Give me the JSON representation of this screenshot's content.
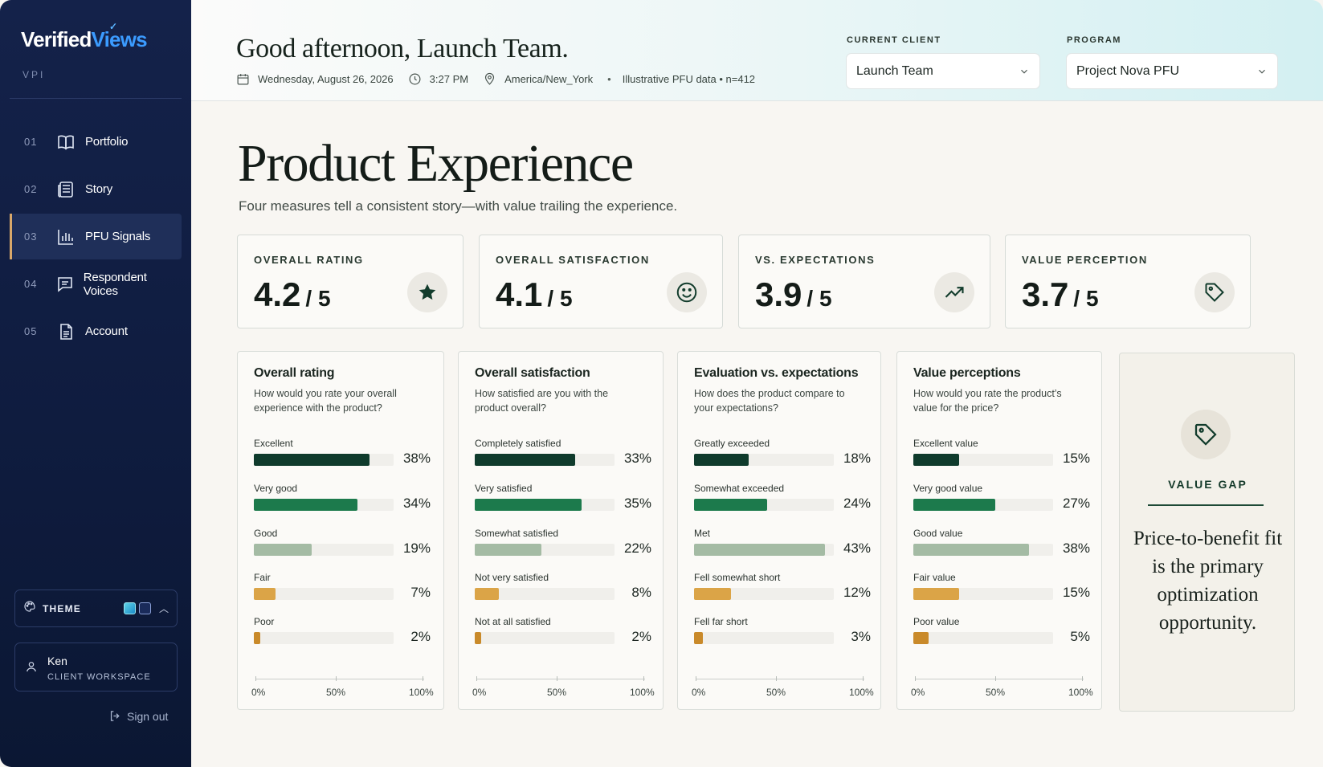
{
  "brand": {
    "name_part1": "Verified",
    "name_part2": "Views",
    "sub": "VPI"
  },
  "nav": [
    {
      "num": "01",
      "label": "Portfolio",
      "icon": "book-icon"
    },
    {
      "num": "02",
      "label": "Story",
      "icon": "newspaper-icon"
    },
    {
      "num": "03",
      "label": "PFU Signals",
      "icon": "bar-chart-icon",
      "active": true
    },
    {
      "num": "04",
      "label": "Respondent Voices",
      "icon": "message-icon"
    },
    {
      "num": "05",
      "label": "Account",
      "icon": "document-icon"
    }
  ],
  "theme": {
    "label": "THEME"
  },
  "user": {
    "name": "Ken",
    "role": "CLIENT WORKSPACE"
  },
  "signout": "Sign out",
  "header": {
    "greeting": "Good afternoon, Launch Team.",
    "date": "Wednesday, August 26, 2026",
    "time": "3:27 PM",
    "timezone": "America/New_York",
    "data_note": "Illustrative PFU data • n=412",
    "client_label": "CURRENT CLIENT",
    "client_value": "Launch Team",
    "program_label": "PROGRAM",
    "program_value": "Project Nova PFU"
  },
  "page": {
    "title": "Product Experience",
    "subtitle": "Four measures tell a consistent story—with value trailing the experience."
  },
  "kpis": [
    {
      "label": "OVERALL RATING",
      "value": "4.2",
      "of": "/ 5",
      "icon": "star-icon"
    },
    {
      "label": "OVERALL SATISFACTION",
      "value": "4.1",
      "of": "/ 5",
      "icon": "smile-icon"
    },
    {
      "label": "VS. EXPECTATIONS",
      "value": "3.9",
      "of": "/ 5",
      "icon": "trending-up-icon"
    },
    {
      "label": "VALUE PERCEPTION",
      "value": "3.7",
      "of": "/ 5",
      "icon": "tag-icon"
    }
  ],
  "colors": [
    "#0f3b2c",
    "#1c7a4c",
    "#a4bba4",
    "#dba447",
    "#c98a2a"
  ],
  "axis_labels": [
    "0%",
    "50%",
    "100%"
  ],
  "cards": [
    {
      "title": "Overall rating",
      "question": "How would you rate your overall experience with the product?",
      "rows": [
        {
          "label": "Excellent",
          "pct": 38,
          "pct_text": "38%"
        },
        {
          "label": "Very good",
          "pct": 34,
          "pct_text": "34%"
        },
        {
          "label": "Good",
          "pct": 19,
          "pct_text": "19%"
        },
        {
          "label": "Fair",
          "pct": 7,
          "pct_text": "7%"
        },
        {
          "label": "Poor",
          "pct": 2,
          "pct_text": "2%"
        }
      ]
    },
    {
      "title": "Overall satisfaction",
      "question": "How satisfied are you with the product overall?",
      "rows": [
        {
          "label": "Completely satisfied",
          "pct": 33,
          "pct_text": "33%"
        },
        {
          "label": "Very satisfied",
          "pct": 35,
          "pct_text": "35%"
        },
        {
          "label": "Somewhat satisfied",
          "pct": 22,
          "pct_text": "22%"
        },
        {
          "label": "Not very satisfied",
          "pct": 8,
          "pct_text": "8%"
        },
        {
          "label": "Not at all satisfied",
          "pct": 2,
          "pct_text": "2%"
        }
      ]
    },
    {
      "title": "Evaluation vs. expectations",
      "question": "How does the product compare to your expectations?",
      "rows": [
        {
          "label": "Greatly exceeded",
          "pct": 18,
          "pct_text": "18%"
        },
        {
          "label": "Somewhat exceeded",
          "pct": 24,
          "pct_text": "24%"
        },
        {
          "label": "Met",
          "pct": 43,
          "pct_text": "43%"
        },
        {
          "label": "Fell somewhat short",
          "pct": 12,
          "pct_text": "12%"
        },
        {
          "label": "Fell far short",
          "pct": 3,
          "pct_text": "3%"
        }
      ]
    },
    {
      "title": "Value perceptions",
      "question": "How would you rate the product’s value for the price?",
      "rows": [
        {
          "label": "Excellent value",
          "pct": 15,
          "pct_text": "15%"
        },
        {
          "label": "Very good value",
          "pct": 27,
          "pct_text": "27%"
        },
        {
          "label": "Good value",
          "pct": 38,
          "pct_text": "38%"
        },
        {
          "label": "Fair value",
          "pct": 15,
          "pct_text": "15%"
        },
        {
          "label": "Poor value",
          "pct": 5,
          "pct_text": "5%"
        }
      ]
    }
  ],
  "value_gap": {
    "label": "VALUE GAP",
    "text": "Price-to-benefit fit is the primary optimization opportunity.",
    "icon": "tag-icon"
  }
}
